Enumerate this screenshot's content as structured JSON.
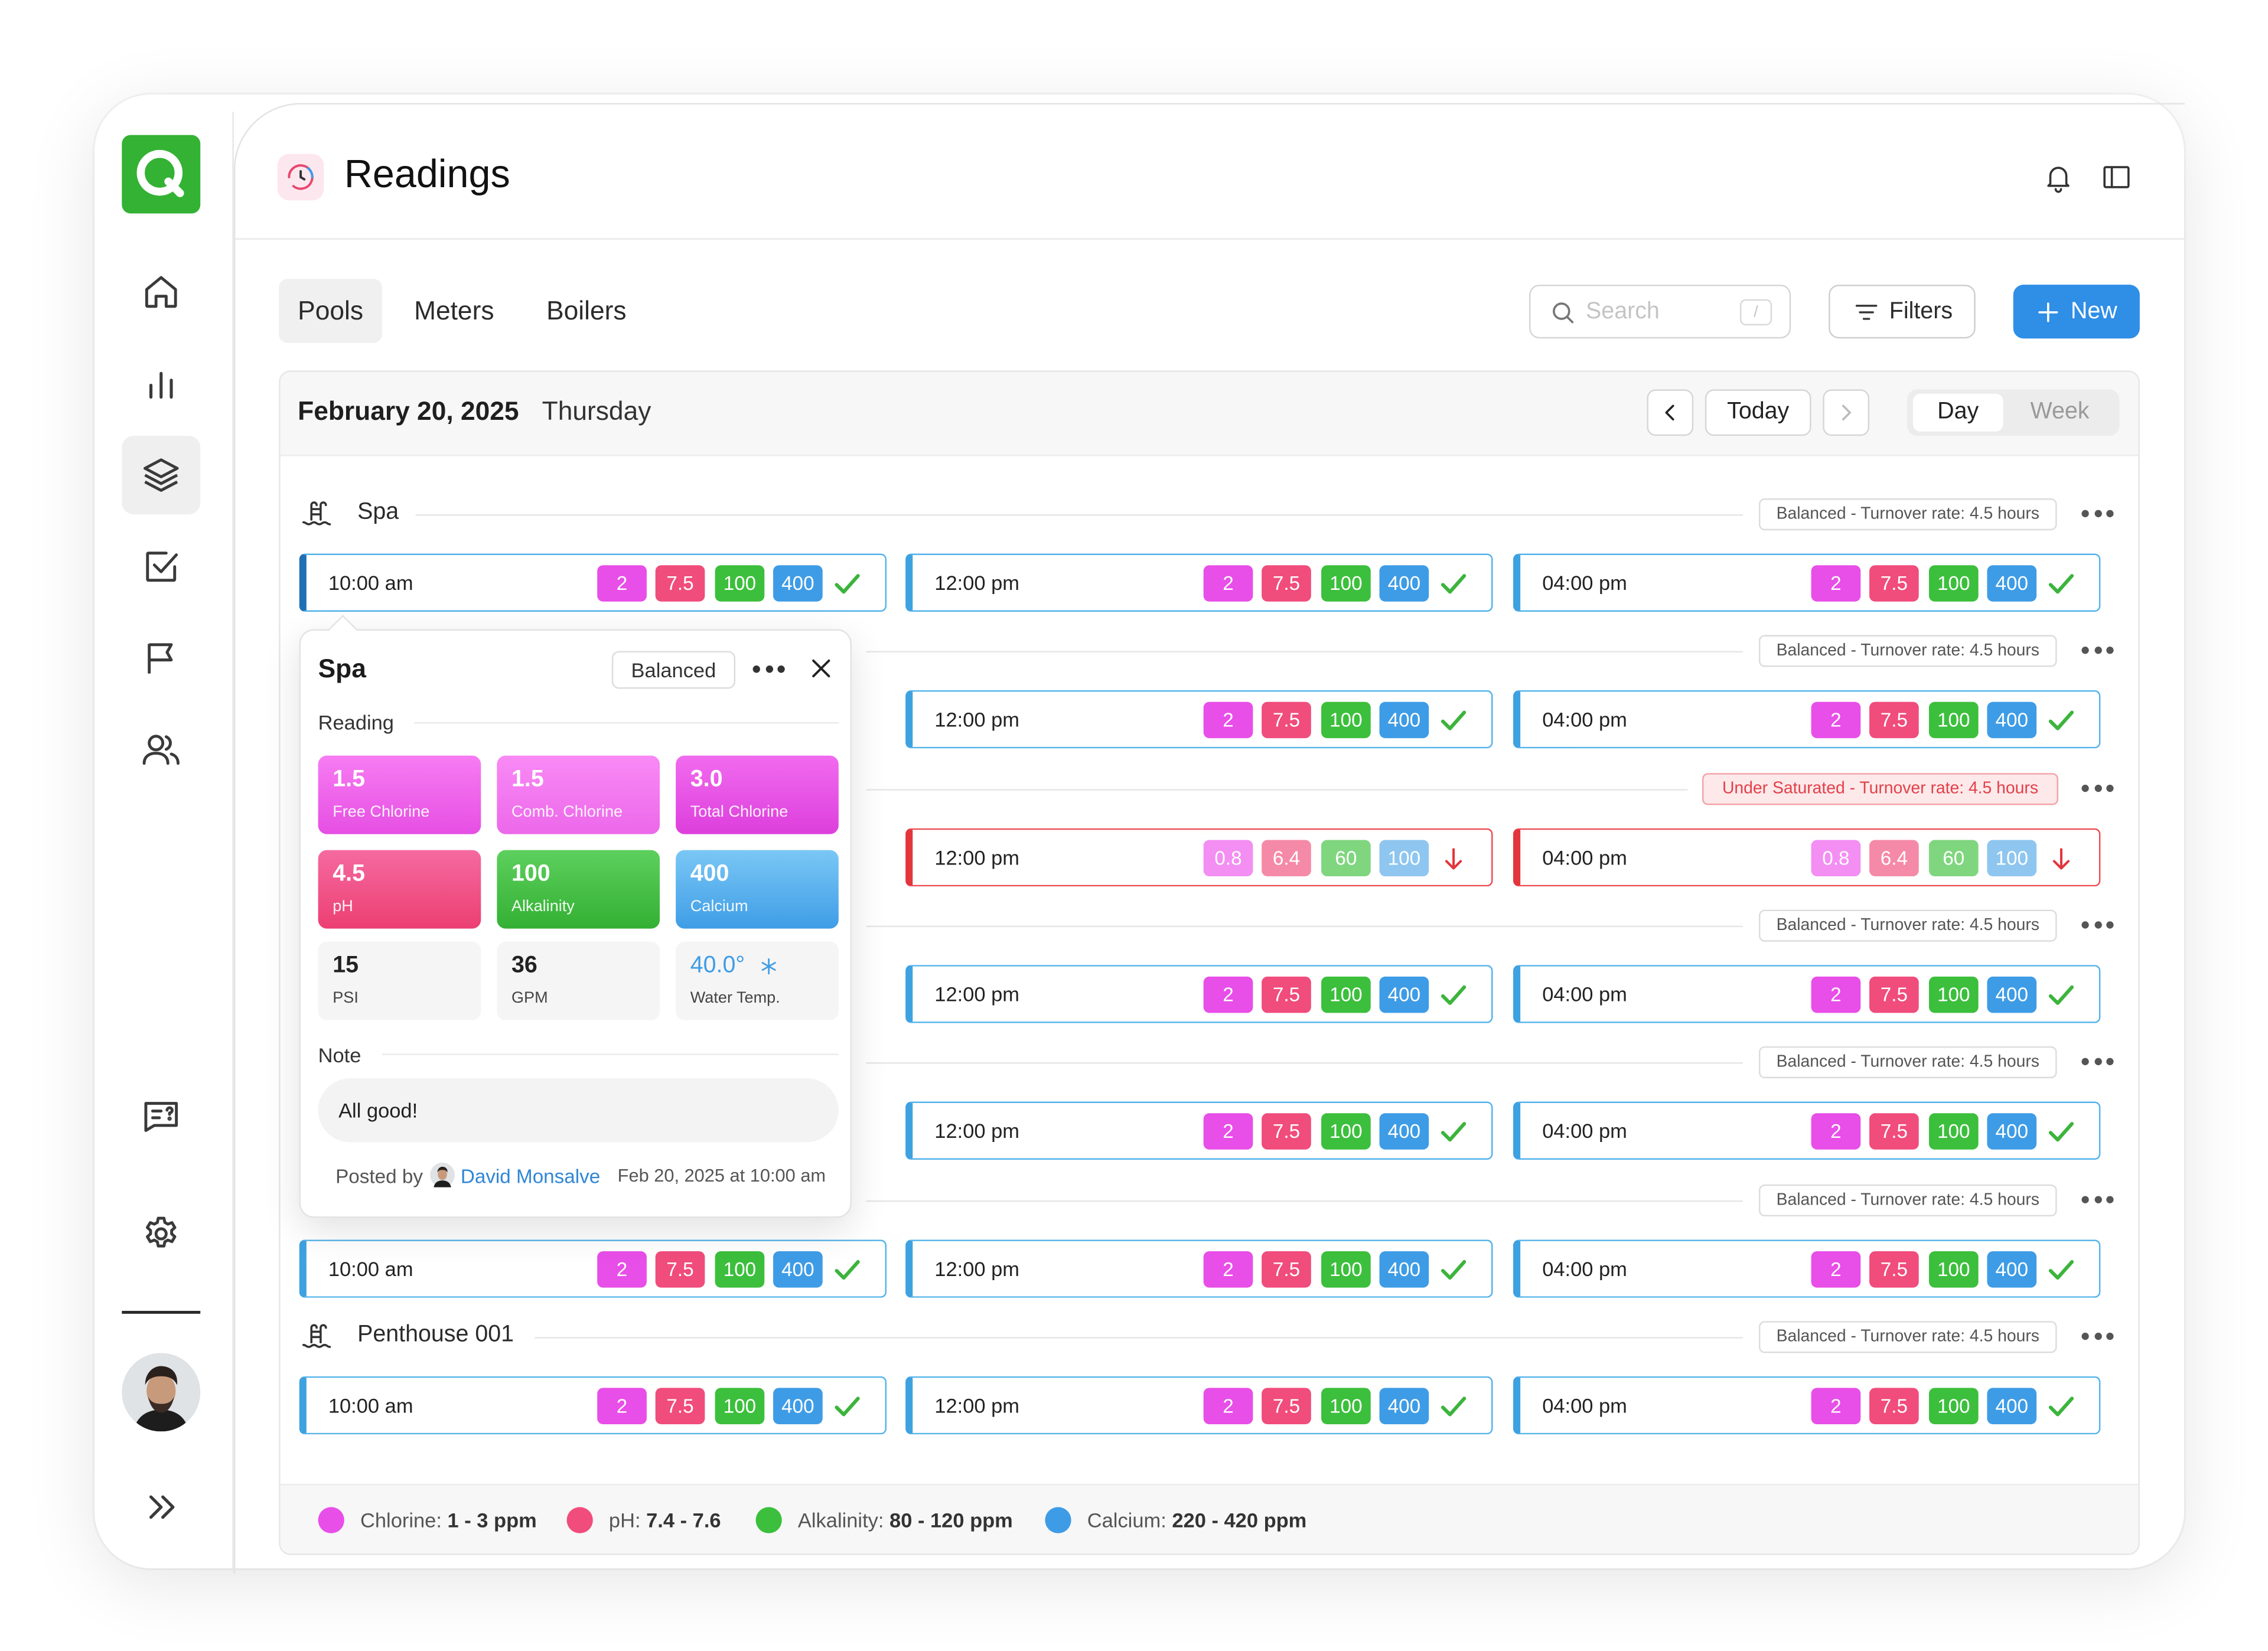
{
  "page": {
    "title": "Readings"
  },
  "tabs": [
    {
      "label": "Pools"
    },
    {
      "label": "Meters"
    },
    {
      "label": "Boilers"
    }
  ],
  "toolbar": {
    "search_placeholder": "Search",
    "search_shortcut": "/",
    "filters_label": "Filters",
    "new_label": "New"
  },
  "date_nav": {
    "date": "February 20, 2025",
    "weekday": "Thursday",
    "today_label": "Today",
    "views": [
      "Day",
      "Week"
    ],
    "active_view": "Day"
  },
  "pools": [
    {
      "name": "Spa",
      "status": "Balanced - Turnover rate: 4.5 hours",
      "alert": false
    },
    {
      "name": "",
      "status": "Balanced - Turnover rate: 4.5 hours",
      "alert": false
    },
    {
      "name": "",
      "status": "Under Saturated - Turnover rate: 4.5 hours",
      "alert": true
    },
    {
      "name": "",
      "status": "Balanced - Turnover rate: 4.5 hours",
      "alert": false
    },
    {
      "name": "",
      "status": "Balanced - Turnover rate: 4.5 hours",
      "alert": false
    },
    {
      "name": "",
      "status": "Balanced - Turnover rate: 4.5 hours",
      "alert": false
    },
    {
      "name": "Penthouse 001",
      "status": "Balanced - Turnover rate: 4.5 hours",
      "alert": false
    }
  ],
  "slots": {
    "times": [
      "10:00 am",
      "12:00 pm",
      "04:00 pm"
    ],
    "normal_values": [
      "2",
      "7.5",
      "100",
      "400"
    ],
    "alert_values": [
      "0.8",
      "6.4",
      "60",
      "100"
    ]
  },
  "popover": {
    "title": "Spa",
    "badge": "Balanced",
    "reading_label": "Reading",
    "tiles": [
      {
        "value": "1.5",
        "label": "Free Chlorine"
      },
      {
        "value": "1.5",
        "label": "Comb. Chlorine"
      },
      {
        "value": "3.0",
        "label": "Total Chlorine"
      },
      {
        "value": "4.5",
        "label": "pH"
      },
      {
        "value": "100",
        "label": "Alkalinity"
      },
      {
        "value": "400",
        "label": "Calcium"
      },
      {
        "value": "15",
        "label": "PSI"
      },
      {
        "value": "36",
        "label": "GPM"
      },
      {
        "value": "40.0°",
        "label": "Water Temp."
      }
    ],
    "note_label": "Note",
    "note": "All good!",
    "posted_by_label": "Posted by",
    "author": "David Monsalve",
    "posted_at": "Feb 20, 2025 at 10:00 am"
  },
  "legend": [
    {
      "name": "Chlorine:",
      "range": "1 - 3 ppm",
      "color": "#e84ee8"
    },
    {
      "name": "pH:",
      "range": "7.4 - 7.6",
      "color": "#f04c7c"
    },
    {
      "name": "Alkalinity:",
      "range": "80 - 120 ppm",
      "color": "#3cbf3c"
    },
    {
      "name": "Calcium:",
      "range": "220 - 420 ppm",
      "color": "#3e9ce6"
    }
  ],
  "colors": {
    "brand": "#33b233",
    "accent": "#2f8ee6",
    "alert": "#e3353c"
  }
}
